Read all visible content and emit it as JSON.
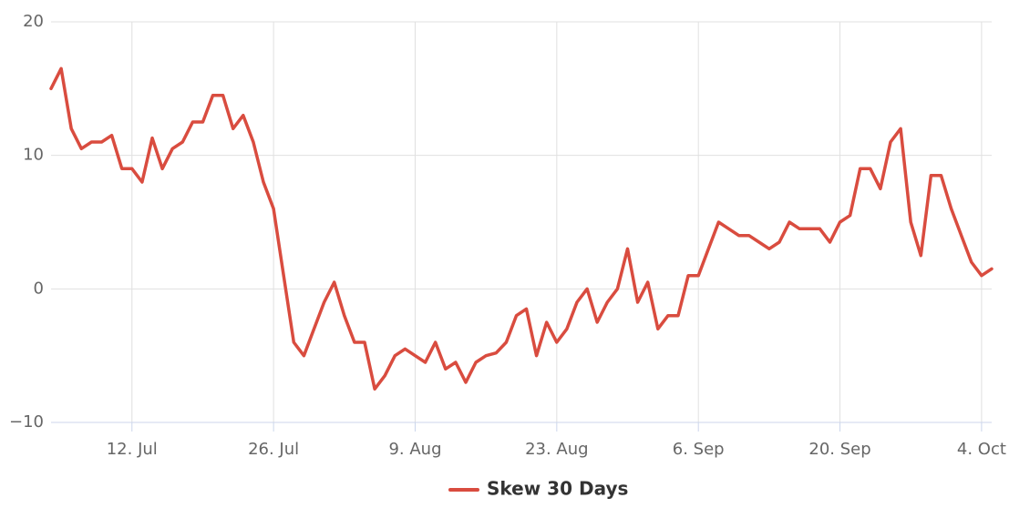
{
  "chart_data": {
    "type": "line",
    "x": [
      "4. Jul",
      "5. Jul",
      "6. Jul",
      "7. Jul",
      "8. Jul",
      "9. Jul",
      "10. Jul",
      "11. Jul",
      "12. Jul",
      "13. Jul",
      "14. Jul",
      "15. Jul",
      "16. Jul",
      "17. Jul",
      "18. Jul",
      "19. Jul",
      "20. Jul",
      "21. Jul",
      "22. Jul",
      "23. Jul",
      "24. Jul",
      "25. Jul",
      "26. Jul",
      "27. Jul",
      "28. Jul",
      "29. Jul",
      "30. Jul",
      "31. Jul",
      "1. Aug",
      "2. Aug",
      "3. Aug",
      "4. Aug",
      "5. Aug",
      "6. Aug",
      "7. Aug",
      "8. Aug",
      "9. Aug",
      "10. Aug",
      "11. Aug",
      "12. Aug",
      "13. Aug",
      "14. Aug",
      "15. Aug",
      "16. Aug",
      "17. Aug",
      "18. Aug",
      "19. Aug",
      "20. Aug",
      "21. Aug",
      "22. Aug",
      "23. Aug",
      "24. Aug",
      "25. Aug",
      "26. Aug",
      "27. Aug",
      "28. Aug",
      "29. Aug",
      "30. Aug",
      "31. Aug",
      "1. Sep",
      "2. Sep",
      "3. Sep",
      "4. Sep",
      "5. Sep",
      "6. Sep",
      "7. Sep",
      "8. Sep",
      "9. Sep",
      "10. Sep",
      "11. Sep",
      "12. Sep",
      "13. Sep",
      "14. Sep",
      "15. Sep",
      "16. Sep",
      "17. Sep",
      "18. Sep",
      "19. Sep",
      "20. Sep",
      "21. Sep",
      "22. Sep",
      "23. Sep",
      "24. Sep",
      "25. Sep",
      "26. Sep",
      "27. Sep",
      "28. Sep",
      "29. Sep",
      "30. Sep",
      "1. Oct",
      "2. Oct",
      "3. Oct",
      "4. Oct",
      "5. Oct"
    ],
    "series": [
      {
        "name": "Skew 30 Days",
        "color": "#d94c3f",
        "values": [
          15,
          16.5,
          12,
          10.5,
          11,
          11,
          11.5,
          9,
          9,
          8,
          11.3,
          9,
          10.5,
          11,
          12.5,
          12.5,
          14.5,
          14.5,
          12,
          13,
          11,
          8,
          6,
          1,
          -4,
          -5,
          -3,
          -1,
          0.5,
          -2,
          -4,
          -4,
          -7.5,
          -6.5,
          -5,
          -4.5,
          -5,
          -5.5,
          -4,
          -6,
          -5.5,
          -7,
          -5.5,
          -5,
          -4.8,
          -4,
          -2,
          -1.5,
          -5,
          -2.5,
          -4,
          -3,
          -1,
          0,
          -2.5,
          -1,
          0,
          3,
          -1,
          0.5,
          -3,
          -2,
          -2,
          1,
          1,
          3,
          5,
          4.5,
          4,
          4,
          3.5,
          3,
          3.5,
          5,
          4.5,
          4.5,
          4.5,
          3.5,
          5,
          5.5,
          9,
          9,
          7.5,
          11,
          12,
          5,
          2.5,
          8.5,
          8.5,
          6,
          4,
          2,
          1,
          1.5
        ]
      }
    ],
    "xticks": [
      "12. Jul",
      "26. Jul",
      "9. Aug",
      "23. Aug",
      "6. Sep",
      "20. Sep",
      "4. Oct"
    ],
    "ylim": [
      -10,
      20
    ],
    "yticks": [
      {
        "value": -10,
        "label": "−10"
      },
      0,
      10,
      20
    ],
    "grid": true,
    "legend": "bottom"
  }
}
